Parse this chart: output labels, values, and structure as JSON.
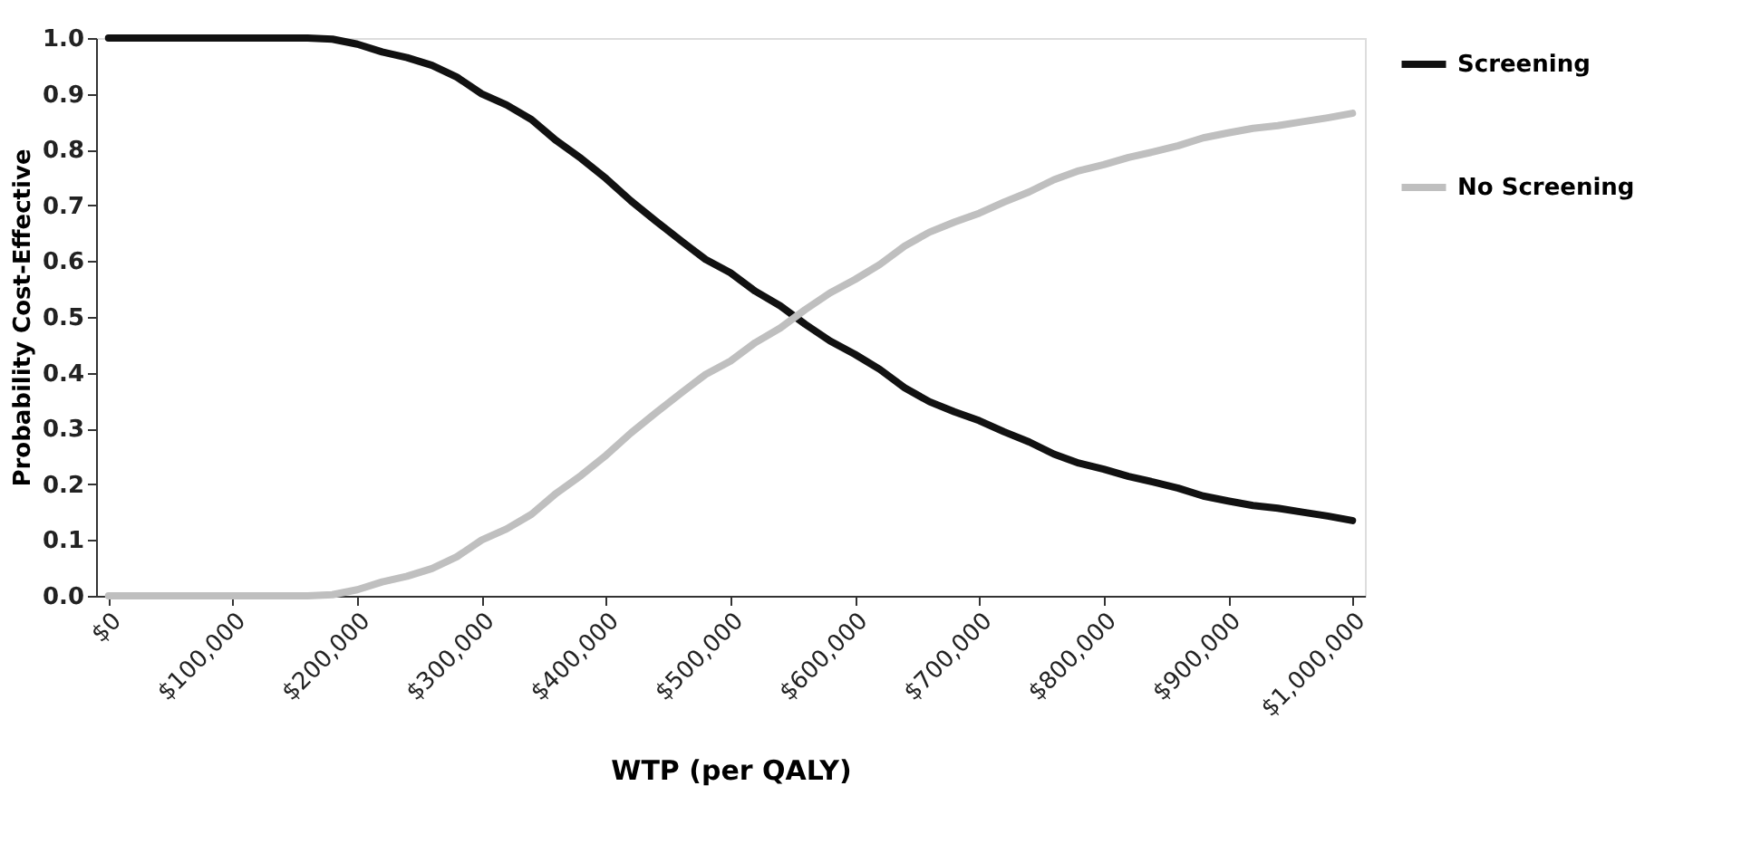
{
  "chart_data": {
    "type": "line",
    "xlabel": "WTP (per QALY)",
    "ylabel": "Probability Cost-Effective",
    "x": [
      0,
      20000,
      40000,
      60000,
      80000,
      100000,
      120000,
      140000,
      160000,
      180000,
      200000,
      220000,
      240000,
      260000,
      280000,
      300000,
      320000,
      340000,
      360000,
      380000,
      400000,
      420000,
      440000,
      460000,
      480000,
      500000,
      520000,
      540000,
      560000,
      580000,
      600000,
      620000,
      640000,
      660000,
      680000,
      700000,
      720000,
      740000,
      760000,
      780000,
      800000,
      820000,
      840000,
      860000,
      880000,
      900000,
      920000,
      940000,
      960000,
      980000,
      1000000
    ],
    "series": [
      {
        "name": "Screening",
        "color": "#111111",
        "values": [
          1.0,
          1.0,
          1.0,
          1.0,
          1.0,
          1.0,
          1.0,
          1.0,
          1.0,
          0.998,
          0.989,
          0.975,
          0.965,
          0.951,
          0.93,
          0.9,
          0.88,
          0.854,
          0.816,
          0.784,
          0.748,
          0.708,
          0.672,
          0.637,
          0.603,
          0.579,
          0.546,
          0.52,
          0.487,
          0.457,
          0.433,
          0.406,
          0.373,
          0.348,
          0.33,
          0.314,
          0.294,
          0.276,
          0.254,
          0.238,
          0.227,
          0.214,
          0.204,
          0.193,
          0.179,
          0.17,
          0.162,
          0.157,
          0.15,
          0.143,
          0.135
        ]
      },
      {
        "name": "No Screening",
        "color": "#bfbfbf",
        "values": [
          0.0,
          0.0,
          0.0,
          0.0,
          0.0,
          0.0,
          0.0,
          0.0,
          0.0,
          0.002,
          0.011,
          0.025,
          0.035,
          0.049,
          0.07,
          0.1,
          0.12,
          0.146,
          0.184,
          0.216,
          0.252,
          0.292,
          0.328,
          0.363,
          0.397,
          0.421,
          0.454,
          0.48,
          0.513,
          0.543,
          0.567,
          0.594,
          0.627,
          0.652,
          0.67,
          0.686,
          0.706,
          0.724,
          0.746,
          0.762,
          0.773,
          0.786,
          0.796,
          0.807,
          0.821,
          0.83,
          0.838,
          0.843,
          0.85,
          0.857,
          0.865
        ]
      }
    ],
    "xlim": [
      -10000,
      1010000
    ],
    "xticks": [
      {
        "value": 0,
        "label": "$0"
      },
      {
        "value": 100000,
        "label": "$100,000"
      },
      {
        "value": 200000,
        "label": "$200,000"
      },
      {
        "value": 300000,
        "label": "$300,000"
      },
      {
        "value": 400000,
        "label": "$400,000"
      },
      {
        "value": 500000,
        "label": "$500,000"
      },
      {
        "value": 600000,
        "label": "$600,000"
      },
      {
        "value": 700000,
        "label": "$700,000"
      },
      {
        "value": 800000,
        "label": "$800,000"
      },
      {
        "value": 900000,
        "label": "$900,000"
      },
      {
        "value": 1000000,
        "label": "$1,000,000"
      }
    ],
    "ylim": [
      0,
      1
    ],
    "yticks": [
      {
        "value": 0,
        "label": "0.0"
      },
      {
        "value": 0.1,
        "label": "0.1"
      },
      {
        "value": 0.2,
        "label": "0.2"
      },
      {
        "value": 0.3,
        "label": "0.3"
      },
      {
        "value": 0.4,
        "label": "0.4"
      },
      {
        "value": 0.5,
        "label": "0.5"
      },
      {
        "value": 0.6,
        "label": "0.6"
      },
      {
        "value": 0.7,
        "label": "0.7"
      },
      {
        "value": 0.8,
        "label": "0.8"
      },
      {
        "value": 0.9,
        "label": "0.9"
      },
      {
        "value": 1,
        "label": "1.0"
      }
    ],
    "grid": false,
    "legend": "right",
    "line_style": "solid",
    "marker": "none"
  }
}
